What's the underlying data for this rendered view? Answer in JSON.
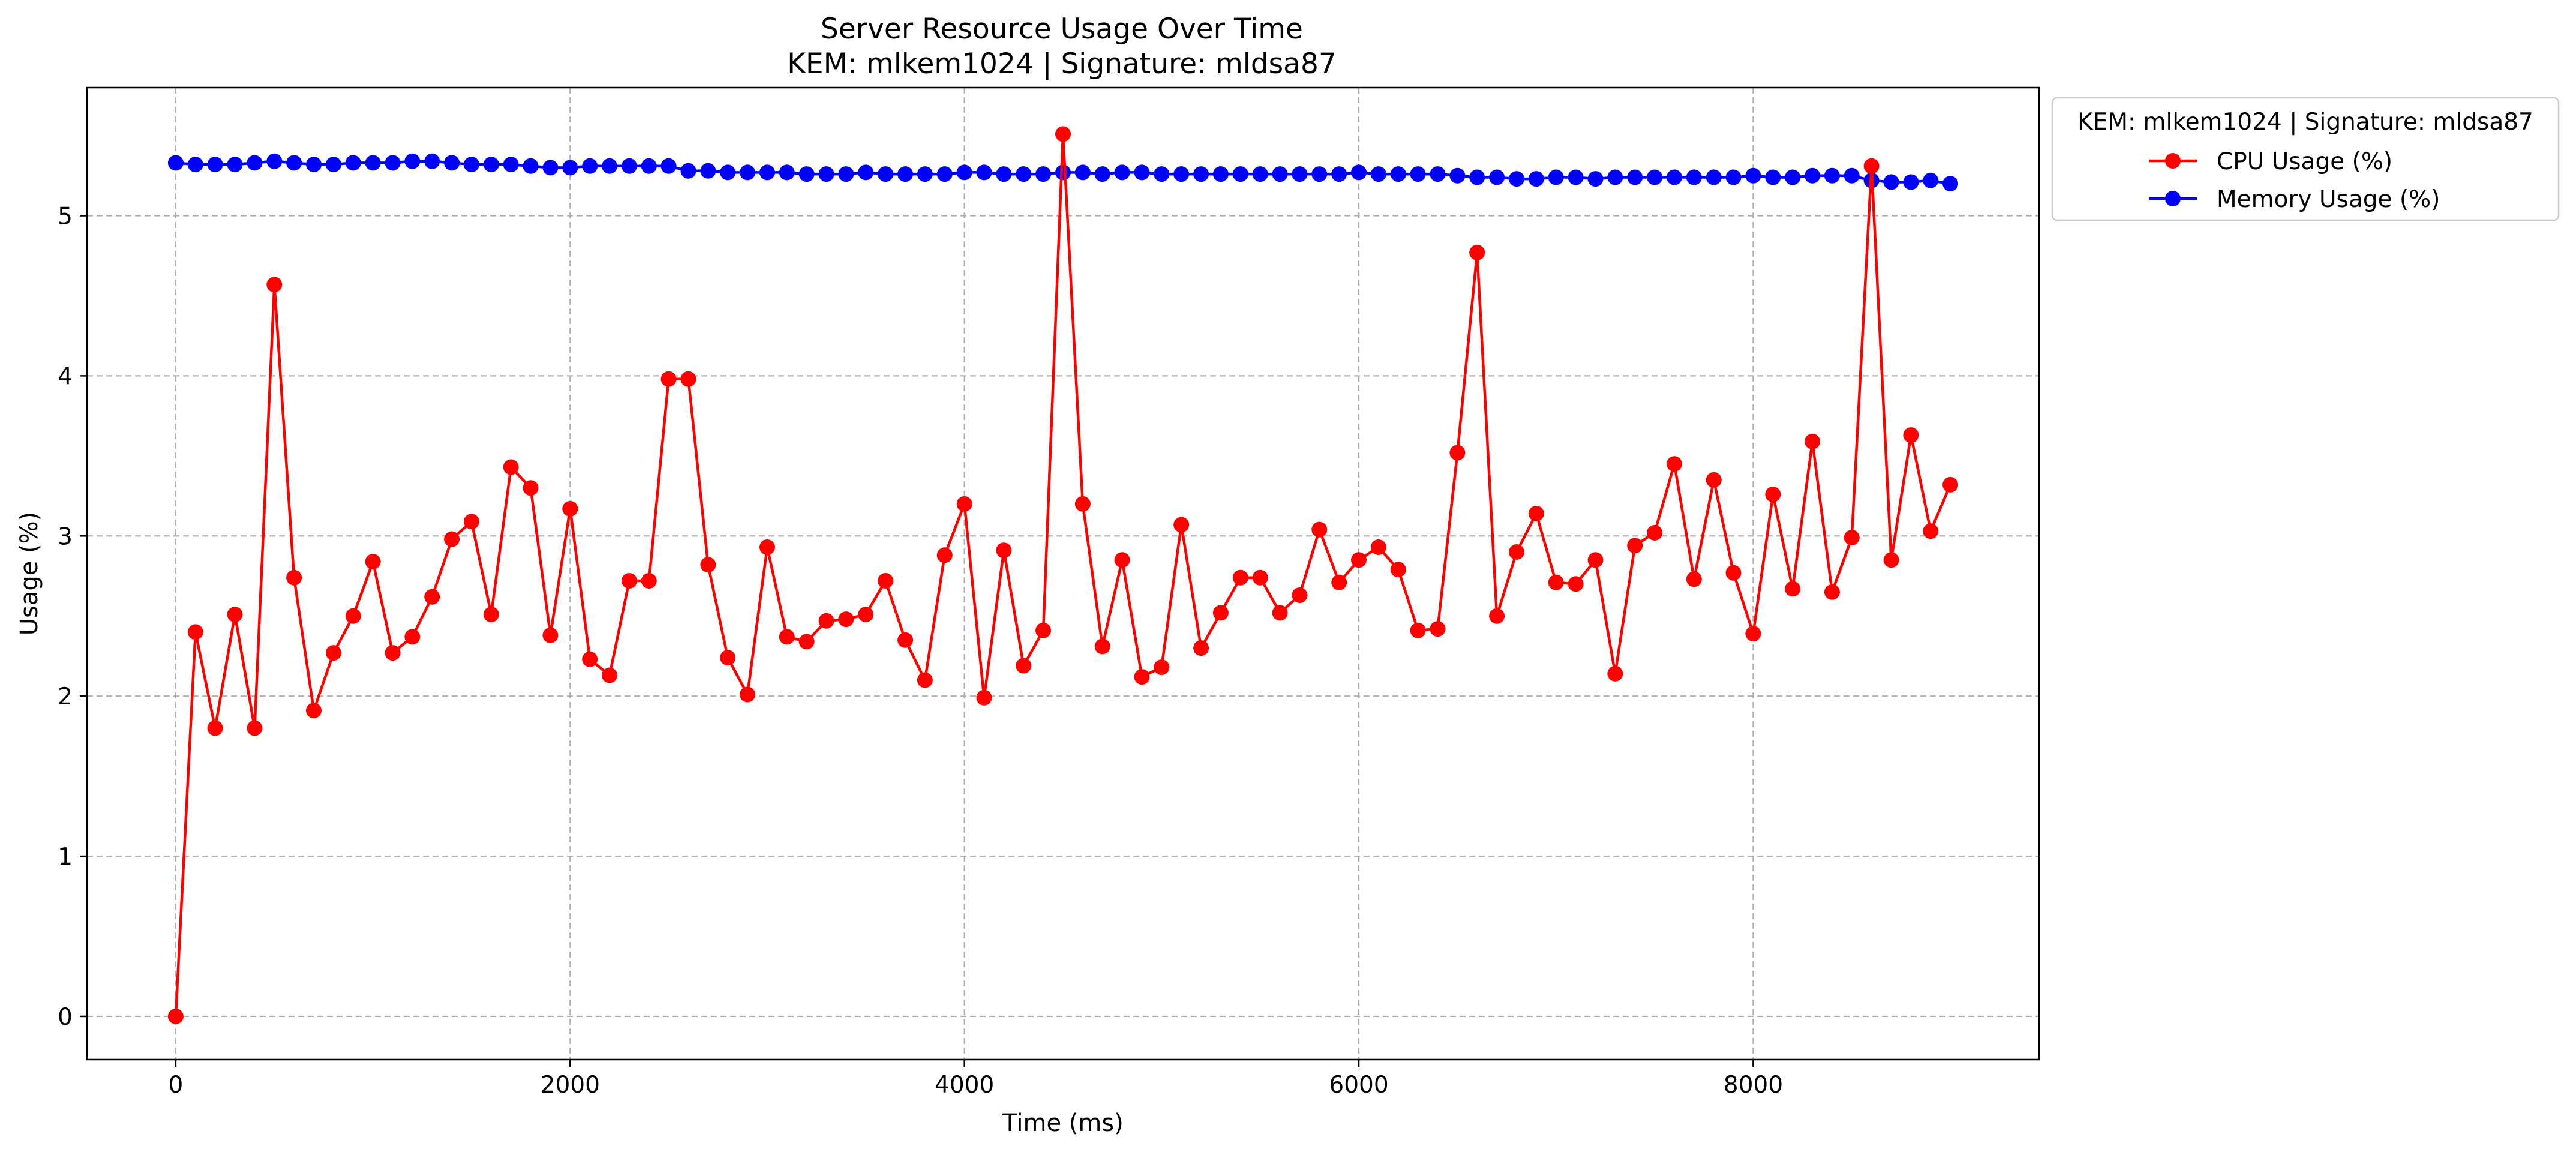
{
  "chart_data": {
    "type": "line",
    "title": "Server Resource Usage Over Time",
    "subtitle": "KEM: mlkem1024 | Signature: mldsa87",
    "xlabel": "Time (ms)",
    "ylabel": "Usage (%)",
    "xlim": [
      -450,
      9450
    ],
    "ylim": [
      -0.27,
      5.8
    ],
    "x_ticks": [
      {
        "value": 0,
        "label": "0"
      },
      {
        "value": 2000,
        "label": "2000"
      },
      {
        "value": 4000,
        "label": "4000"
      },
      {
        "value": 6000,
        "label": "6000"
      },
      {
        "value": 8000,
        "label": "8000"
      }
    ],
    "y_ticks": [
      {
        "value": 0,
        "label": "0"
      },
      {
        "value": 1,
        "label": "1"
      },
      {
        "value": 2,
        "label": "2"
      },
      {
        "value": 3,
        "label": "3"
      },
      {
        "value": 4,
        "label": "4"
      },
      {
        "value": 5,
        "label": "5"
      }
    ],
    "grid": true,
    "legend": {
      "title": "KEM: mlkem1024 | Signature: mldsa87",
      "placement": "outside-top-right"
    },
    "x": [
      0,
      100,
      200,
      300,
      400,
      500,
      600,
      700,
      800,
      900,
      1000,
      1100,
      1200,
      1300,
      1400,
      1500,
      1600,
      1700,
      1800,
      1900,
      2000,
      2100,
      2200,
      2300,
      2400,
      2500,
      2600,
      2700,
      2800,
      2900,
      3000,
      3100,
      3200,
      3300,
      3400,
      3500,
      3600,
      3700,
      3800,
      3900,
      4000,
      4100,
      4200,
      4300,
      4400,
      4500,
      4600,
      4700,
      4800,
      4900,
      5000,
      5100,
      5200,
      5300,
      5400,
      5500,
      5600,
      5700,
      5800,
      5900,
      6000,
      6100,
      6200,
      6300,
      6400,
      6500,
      6600,
      6700,
      6800,
      6900,
      7000,
      7100,
      7200,
      7300,
      7400,
      7500,
      7600,
      7700,
      7800,
      7900,
      8000,
      8100,
      8200,
      8300,
      8400,
      8500,
      8600,
      8700,
      8800,
      8900,
      9000
    ],
    "series": [
      {
        "name": "CPU Usage (%)",
        "color": "#ff0000",
        "values": [
          0,
          2.4,
          1.8,
          2.51,
          1.8,
          4.57,
          2.74,
          1.91,
          2.27,
          2.5,
          2.84,
          2.27,
          2.37,
          2.62,
          2.98,
          3.09,
          2.51,
          3.43,
          3.3,
          2.38,
          3.17,
          2.23,
          2.13,
          2.72,
          2.72,
          3.98,
          3.98,
          2.82,
          2.24,
          2.01,
          2.93,
          2.37,
          2.34,
          2.47,
          2.48,
          2.51,
          2.72,
          2.35,
          2.1,
          2.88,
          3.2,
          1.99,
          2.91,
          2.19,
          2.41,
          5.51,
          3.2,
          2.31,
          2.85,
          2.12,
          2.18,
          3.07,
          2.3,
          2.52,
          2.74,
          2.74,
          2.52,
          2.63,
          3.04,
          2.71,
          2.85,
          2.93,
          2.79,
          2.41,
          2.42,
          3.52,
          4.77,
          2.5,
          2.9,
          3.14,
          2.71,
          2.7,
          2.85,
          2.14,
          2.94,
          3.02,
          3.45,
          2.73,
          3.35,
          2.77,
          2.39,
          3.26,
          2.67,
          3.59,
          2.65,
          2.99,
          5.31,
          2.85,
          3.63,
          3.03,
          3.32
        ]
      },
      {
        "name": "Memory Usage (%)",
        "color": "#0000ff",
        "values": [
          5.33,
          5.32,
          5.32,
          5.32,
          5.33,
          5.34,
          5.33,
          5.32,
          5.32,
          5.33,
          5.33,
          5.33,
          5.34,
          5.34,
          5.33,
          5.32,
          5.32,
          5.32,
          5.31,
          5.3,
          5.3,
          5.31,
          5.31,
          5.31,
          5.31,
          5.31,
          5.28,
          5.28,
          5.27,
          5.27,
          5.27,
          5.27,
          5.26,
          5.26,
          5.26,
          5.27,
          5.26,
          5.26,
          5.26,
          5.26,
          5.27,
          5.27,
          5.26,
          5.26,
          5.26,
          5.27,
          5.27,
          5.26,
          5.27,
          5.27,
          5.26,
          5.26,
          5.26,
          5.26,
          5.26,
          5.26,
          5.26,
          5.26,
          5.26,
          5.26,
          5.27,
          5.26,
          5.26,
          5.26,
          5.26,
          5.25,
          5.24,
          5.24,
          5.23,
          5.23,
          5.24,
          5.24,
          5.23,
          5.24,
          5.24,
          5.24,
          5.24,
          5.24,
          5.24,
          5.24,
          5.25,
          5.24,
          5.24,
          5.25,
          5.25,
          5.25,
          5.22,
          5.21,
          5.21,
          5.22,
          5.2
        ]
      }
    ]
  }
}
